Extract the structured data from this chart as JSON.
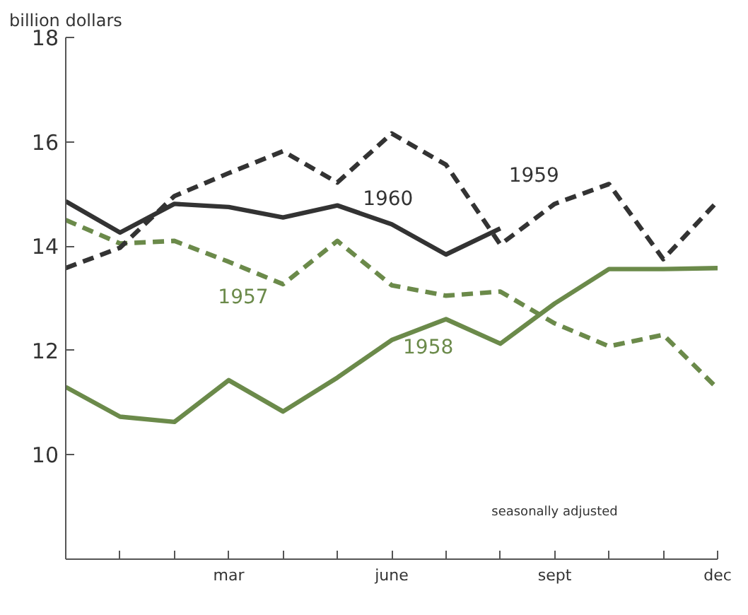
{
  "chart_data": {
    "type": "line",
    "ylabel": "billion dollars",
    "categories": [
      null,
      null,
      null,
      "mar",
      null,
      null,
      "june",
      null,
      null,
      "sept",
      null,
      null,
      "dec"
    ],
    "ylim": [
      8,
      18
    ],
    "yticks": [
      10,
      12,
      14,
      16,
      18
    ],
    "series": [
      {
        "name": "1957",
        "color": "#6b8a4a",
        "line_style": "dashed",
        "values": [
          14.5,
          14.05,
          14.1,
          13.7,
          13.27,
          14.1,
          13.25,
          13.05,
          13.13,
          12.52,
          12.08,
          12.3,
          11.27
        ]
      },
      {
        "name": "1958",
        "color": "#6b8a4a",
        "line_style": "solid",
        "values": [
          11.3,
          10.73,
          10.63,
          11.43,
          10.83,
          11.48,
          12.2,
          12.6,
          12.13,
          12.9,
          13.56,
          13.56,
          13.58
        ]
      },
      {
        "name": "1959",
        "color": "#333333",
        "line_style": "dashed",
        "values": [
          13.58,
          13.97,
          14.96,
          15.4,
          15.82,
          15.22,
          16.16,
          15.56,
          14.03,
          14.81,
          15.19,
          13.75,
          14.86
        ]
      },
      {
        "name": "1960",
        "color": "#333333",
        "line_style": "solid",
        "values": [
          14.86,
          14.26,
          14.81,
          14.75,
          14.55,
          14.78,
          14.42,
          13.84,
          14.34,
          null,
          null,
          null,
          null
        ]
      }
    ],
    "annotations": [
      "seasonally adjusted"
    ],
    "grid": false,
    "marker": "none"
  }
}
